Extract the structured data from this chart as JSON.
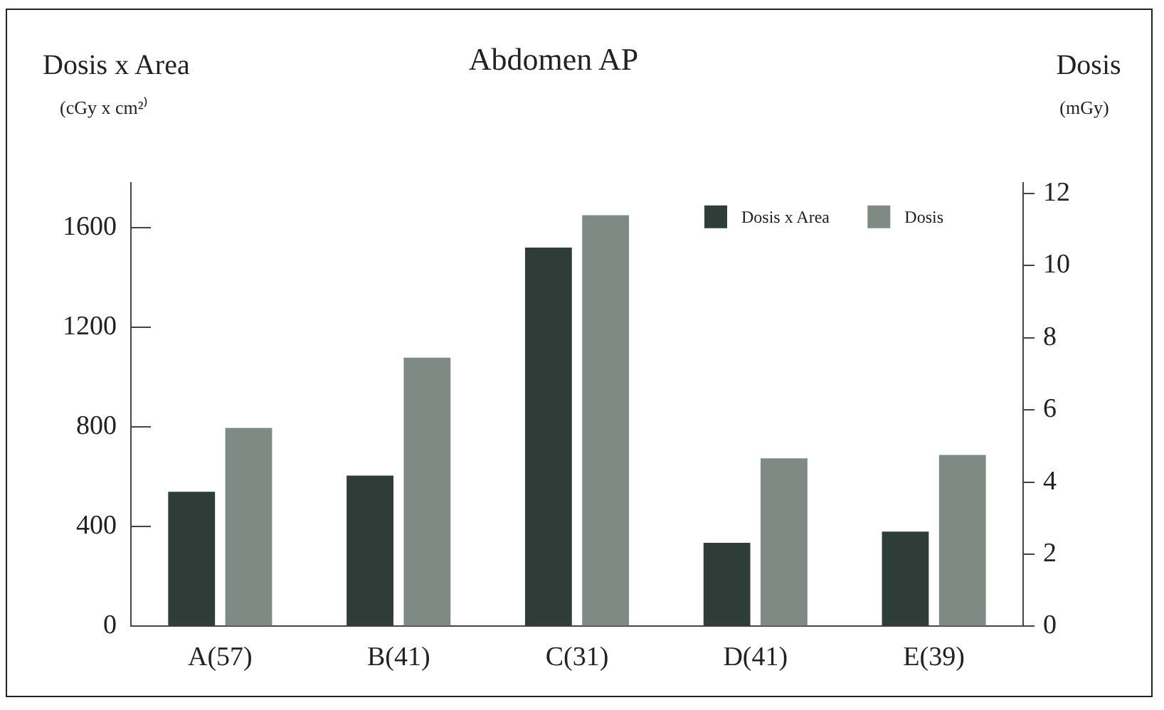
{
  "chart_data": {
    "type": "bar",
    "title": "Abdomen AP",
    "ylabel": "Dosis x Area\n(cGy x cm²⁾",
    "y2label": "Dosis\n(mGy)",
    "categories": [
      "A(57)",
      "B(41)",
      "C(31)",
      "D(41)",
      "E(39)"
    ],
    "series": [
      {
        "name": "Dosis x Area",
        "color": "#2f3d38",
        "values": [
          540,
          605,
          1520,
          335,
          380
        ]
      },
      {
        "name": "Dosis",
        "color": "#7f8a85",
        "axis": "y2",
        "values": [
          5.5,
          7.45,
          11.4,
          4.66,
          4.75
        ]
      }
    ],
    "ylim": [
      0,
      1780
    ],
    "yticks": [
      0,
      400,
      800,
      1200,
      1600
    ],
    "y2lim": [
      0,
      12.3
    ],
    "y2ticks": [
      0,
      2,
      4,
      6,
      8,
      10,
      12
    ],
    "grid": false,
    "legend": "top right"
  }
}
